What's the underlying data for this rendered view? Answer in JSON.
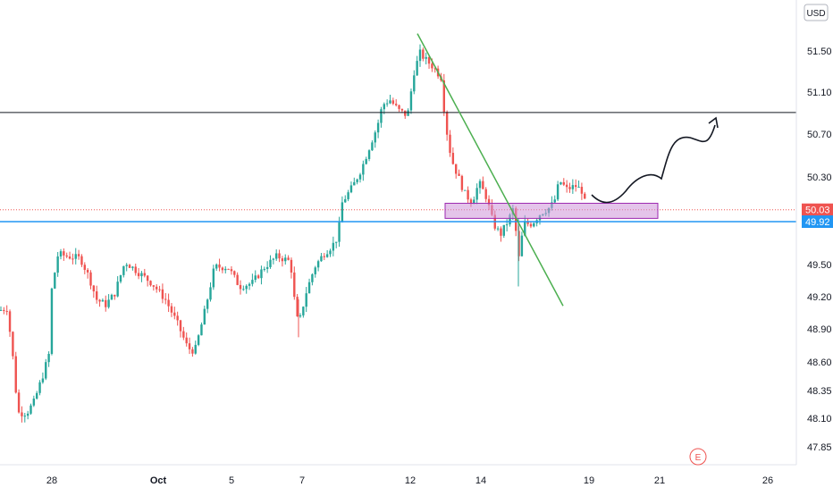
{
  "chart_data": {
    "type": "candlestick",
    "currency": "USD",
    "x_ticks": [
      "28",
      "Oct",
      "5",
      "7",
      "12",
      "14",
      "19",
      "21",
      "26"
    ],
    "y_ticks": [
      "51.50",
      "51.10",
      "50.70",
      "50.30",
      "49.50",
      "49.20",
      "48.90",
      "48.60",
      "48.35",
      "48.10",
      "47.85"
    ],
    "ylim": [
      47.67,
      51.96
    ],
    "grid": false,
    "price_badges": [
      {
        "value": "50.03",
        "color": "#ef5350"
      },
      {
        "value": "49.92",
        "color": "#2196f3"
      }
    ],
    "horizontal_lines": [
      {
        "value": 50.93,
        "color": "#131722"
      },
      {
        "value": 49.92,
        "color": "#2196f3"
      }
    ],
    "trendline": {
      "from": [
        51.66
      ],
      "to": [
        49.14
      ],
      "color": "#4caf50"
    },
    "support_zone": {
      "low": 49.95,
      "high": 50.09,
      "color": "#ce93d8"
    },
    "projection_arrow": {
      "color": "#131722"
    },
    "event_marker": "E",
    "up_color": "#26a69a",
    "down_color": "#ef5350"
  }
}
